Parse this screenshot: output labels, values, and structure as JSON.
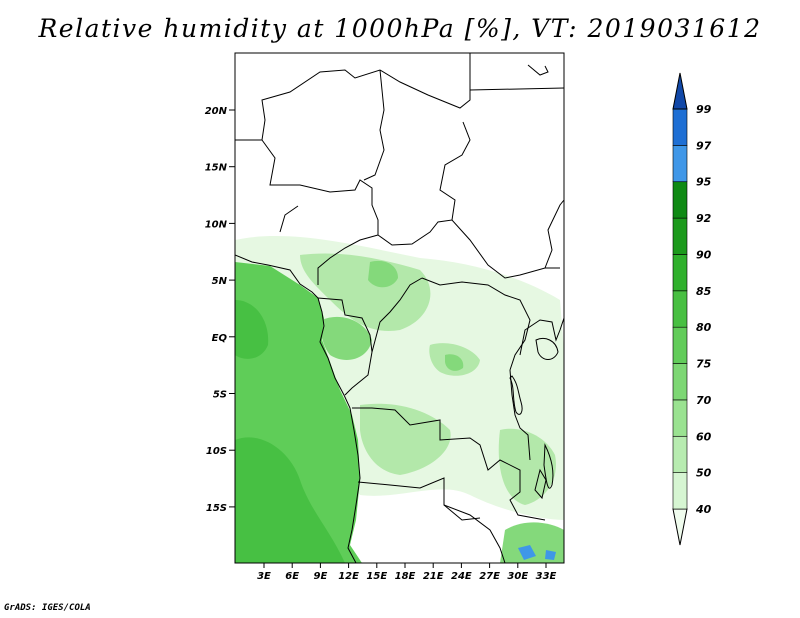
{
  "title": "Relative humidity at 1000hPa [%], VT: 2019031612",
  "credit": "GrADS: IGES/COLA",
  "lat_labels": [
    "20N",
    "15N",
    "10N",
    "5N",
    "EQ",
    "5S",
    "10S",
    "15S"
  ],
  "lon_labels": [
    "3E",
    "6E",
    "9E",
    "12E",
    "15E",
    "18E",
    "21E",
    "24E",
    "27E",
    "30E",
    "33E"
  ],
  "colorbar": {
    "levels": [
      "40",
      "50",
      "60",
      "70",
      "75",
      "80",
      "85",
      "90",
      "92",
      "95",
      "97",
      "99"
    ],
    "colors": [
      "#f0fcee",
      "#d6f5d2",
      "#b7ebb0",
      "#9ae291",
      "#7dd774",
      "#62cc5a",
      "#48bf42",
      "#2fb02c",
      "#1c9a1c",
      "#0f8a14",
      "#3f97e8",
      "#1e6fd4",
      "#1148a8"
    ]
  },
  "colors": {
    "ocean_wet": "#5fcd58",
    "ocean_darker": "#47c043",
    "land_light": "#e6f8e2",
    "land_mid": "#b3e8aa",
    "land_green": "#84d97b",
    "blue_spot": "#3f97e8",
    "border": "#000000"
  }
}
